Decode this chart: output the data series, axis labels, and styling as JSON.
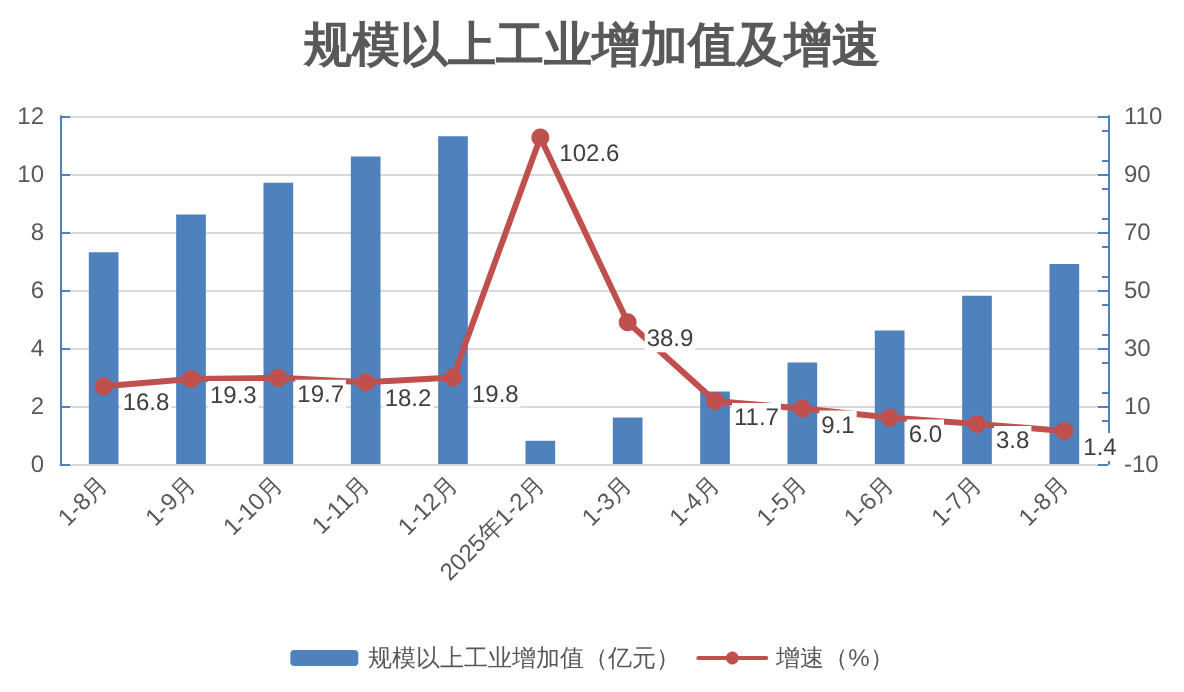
{
  "chart_data": {
    "type": "bar",
    "title": "规模以上工业增加值及增速",
    "categories": [
      "1-8月",
      "1-9月",
      "1-10月",
      "1-11月",
      "1-12月",
      "2025年1-2月",
      "1-3月",
      "1-4月",
      "1-5月",
      "1-6月",
      "1-7月",
      "1-8月"
    ],
    "series": [
      {
        "name": "规模以上工业增加值（亿元）",
        "color": "#4f81bd",
        "values": [
          7.3,
          8.6,
          9.7,
          10.6,
          11.3,
          0.8,
          1.6,
          2.5,
          3.5,
          4.6,
          5.8,
          6.9
        ]
      },
      {
        "name": "增速（%）",
        "type": "line",
        "axis": "y2",
        "color": "#c0504d",
        "marker": "circle",
        "value_labels": [
          "16.8",
          "19.3",
          "19.7",
          "18.2",
          "19.8",
          "102.6",
          "38.9",
          "11.7",
          "9.1",
          "6.0",
          "3.8",
          "1.4"
        ],
        "values": [
          16.8,
          19.3,
          19.7,
          18.2,
          19.8,
          102.6,
          38.9,
          11.7,
          9.1,
          6.0,
          3.8,
          1.4
        ]
      }
    ],
    "ylim": [
      0,
      12
    ],
    "yticks": [
      0,
      2,
      4,
      6,
      8,
      10,
      12
    ],
    "y2lim": [
      -10,
      110
    ],
    "y2ticks": [
      -10,
      10,
      30,
      50,
      70,
      90,
      110
    ],
    "grid": "y",
    "legend": "bottom"
  }
}
